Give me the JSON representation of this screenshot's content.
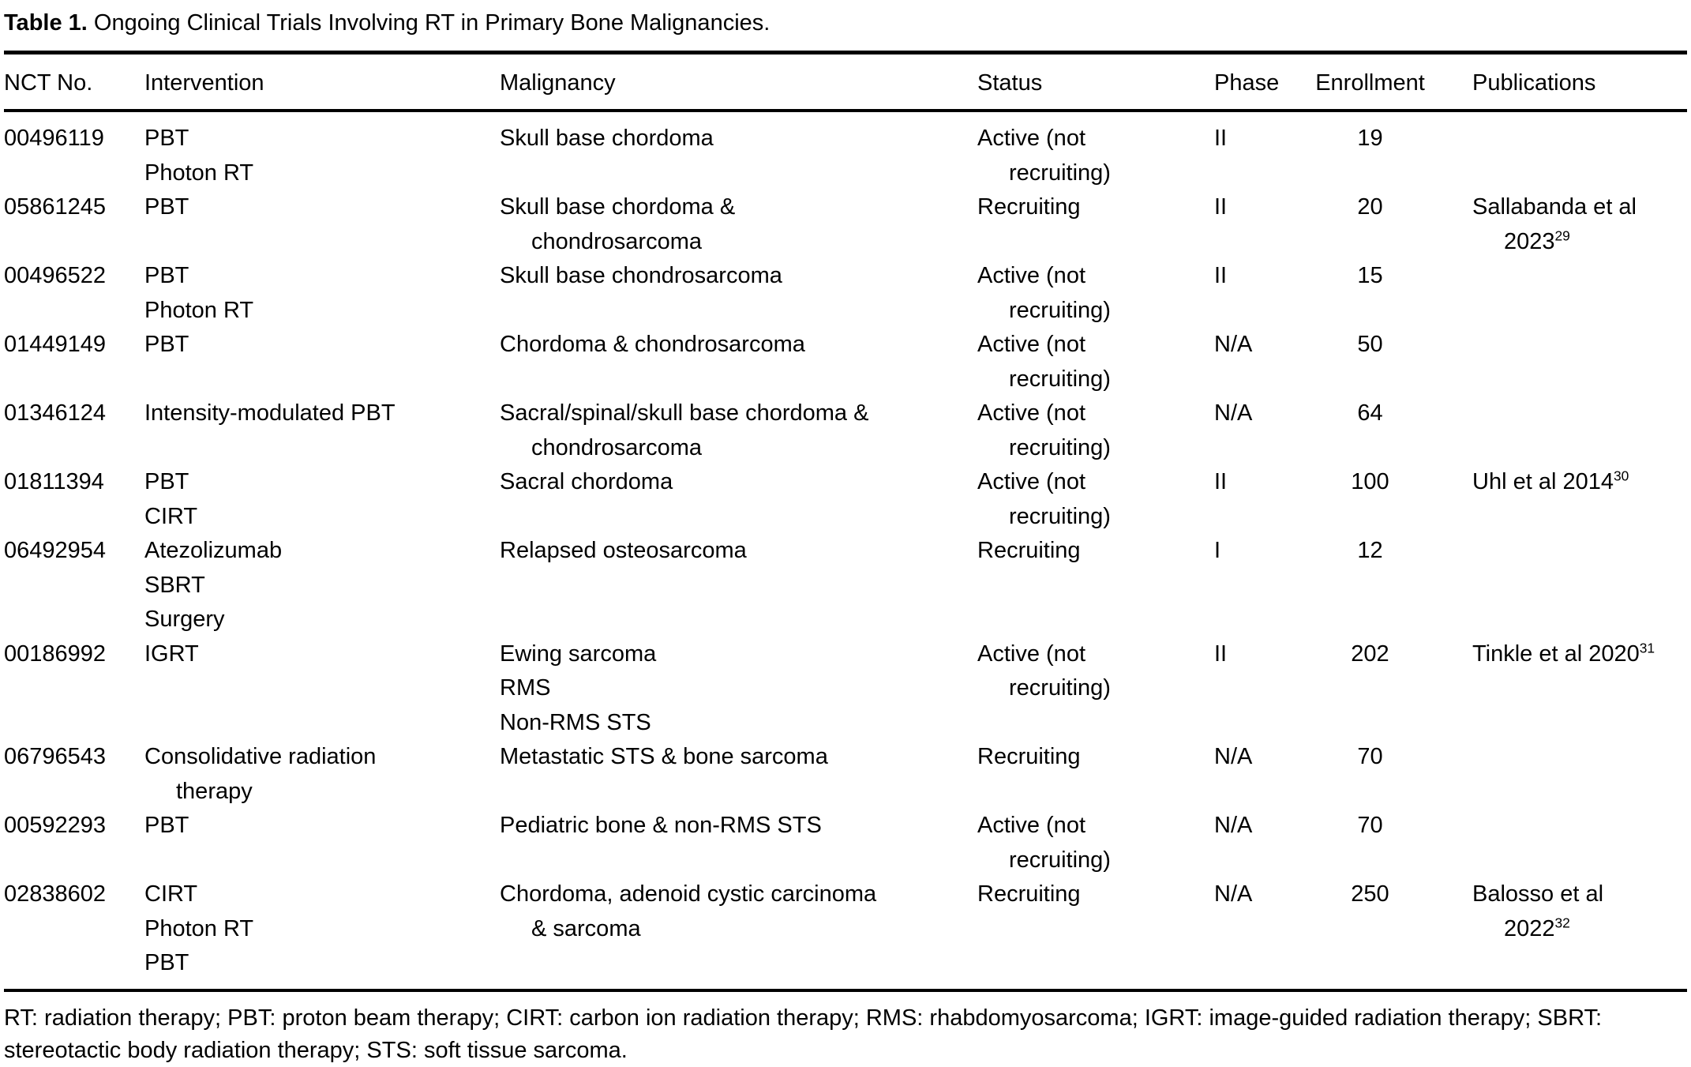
{
  "title": {
    "label": "Table 1.",
    "text": " Ongoing Clinical Trials Involving RT in Primary Bone Malignancies."
  },
  "table": {
    "columns": [
      "NCT No.",
      "Intervention",
      "Malignancy",
      "Status",
      "Phase",
      "Enrollment",
      "Publications"
    ],
    "rows": [
      {
        "nct": "00496119",
        "intervention": [
          "PBT",
          "Photon RT"
        ],
        "malignancy": [
          "Skull base chordoma"
        ],
        "status": "Active (not recruiting)",
        "phase": "II",
        "enrollment": "19",
        "publication": null
      },
      {
        "nct": "05861245",
        "intervention": [
          "PBT"
        ],
        "malignancy": [
          "Skull base chordoma & chondrosarcoma"
        ],
        "status": "Recruiting",
        "phase": "II",
        "enrollment": "20",
        "publication": {
          "text": "Sallabanda et al 2023",
          "ref": "29"
        }
      },
      {
        "nct": "00496522",
        "intervention": [
          "PBT",
          "Photon RT"
        ],
        "malignancy": [
          "Skull base chondrosarcoma"
        ],
        "status": "Active (not recruiting)",
        "phase": "II",
        "enrollment": "15",
        "publication": null
      },
      {
        "nct": "01449149",
        "intervention": [
          "PBT"
        ],
        "malignancy": [
          "Chordoma & chondrosarcoma"
        ],
        "status": "Active (not recruiting)",
        "phase": "N/A",
        "enrollment": "50",
        "publication": null
      },
      {
        "nct": "01346124",
        "intervention": [
          "Intensity-modulated PBT"
        ],
        "malignancy": [
          "Sacral/spinal/skull base chordoma & chondrosarcoma"
        ],
        "status": "Active (not recruiting)",
        "phase": "N/A",
        "enrollment": "64",
        "publication": null
      },
      {
        "nct": "01811394",
        "intervention": [
          "PBT",
          "CIRT"
        ],
        "malignancy": [
          "Sacral chordoma"
        ],
        "status": "Active (not recruiting)",
        "phase": "II",
        "enrollment": "100",
        "publication": {
          "text": "Uhl et al 2014",
          "ref": "30"
        }
      },
      {
        "nct": "06492954",
        "intervention": [
          "Atezolizumab",
          "SBRT",
          "Surgery"
        ],
        "malignancy": [
          "Relapsed osteosarcoma"
        ],
        "status": "Recruiting",
        "phase": "I",
        "enrollment": "12",
        "publication": null
      },
      {
        "nct": "00186992",
        "intervention": [
          "IGRT"
        ],
        "malignancy": [
          "Ewing sarcoma",
          "RMS",
          "Non-RMS STS"
        ],
        "status": "Active (not recruiting)",
        "phase": "II",
        "enrollment": "202",
        "publication": {
          "text": "Tinkle et al 2020",
          "ref": "31"
        }
      },
      {
        "nct": "06796543",
        "intervention": [
          "Consolidative radiation therapy"
        ],
        "malignancy": [
          "Metastatic STS & bone sarcoma"
        ],
        "status": "Recruiting",
        "phase": "N/A",
        "enrollment": "70",
        "publication": null
      },
      {
        "nct": "00592293",
        "intervention": [
          "PBT"
        ],
        "malignancy": [
          "Pediatric bone & non-RMS STS"
        ],
        "status": "Active (not recruiting)",
        "phase": "N/A",
        "enrollment": "70",
        "publication": null
      },
      {
        "nct": "02838602",
        "intervention": [
          "CIRT",
          "Photon RT",
          "PBT"
        ],
        "malignancy": [
          "Chordoma, adenoid cystic carcinoma & sarcoma"
        ],
        "status": "Recruiting",
        "phase": "N/A",
        "enrollment": "250",
        "publication": {
          "text": "Balosso et al 2022",
          "ref": "32"
        }
      }
    ]
  },
  "footnote": "RT: radiation therapy; PBT: proton beam therapy; CIRT: carbon ion radiation therapy; RMS: rhabdomyosarcoma; IGRT: image-guided radiation therapy; SBRT: stereotactic body radiation therapy; STS: soft tissue sarcoma."
}
